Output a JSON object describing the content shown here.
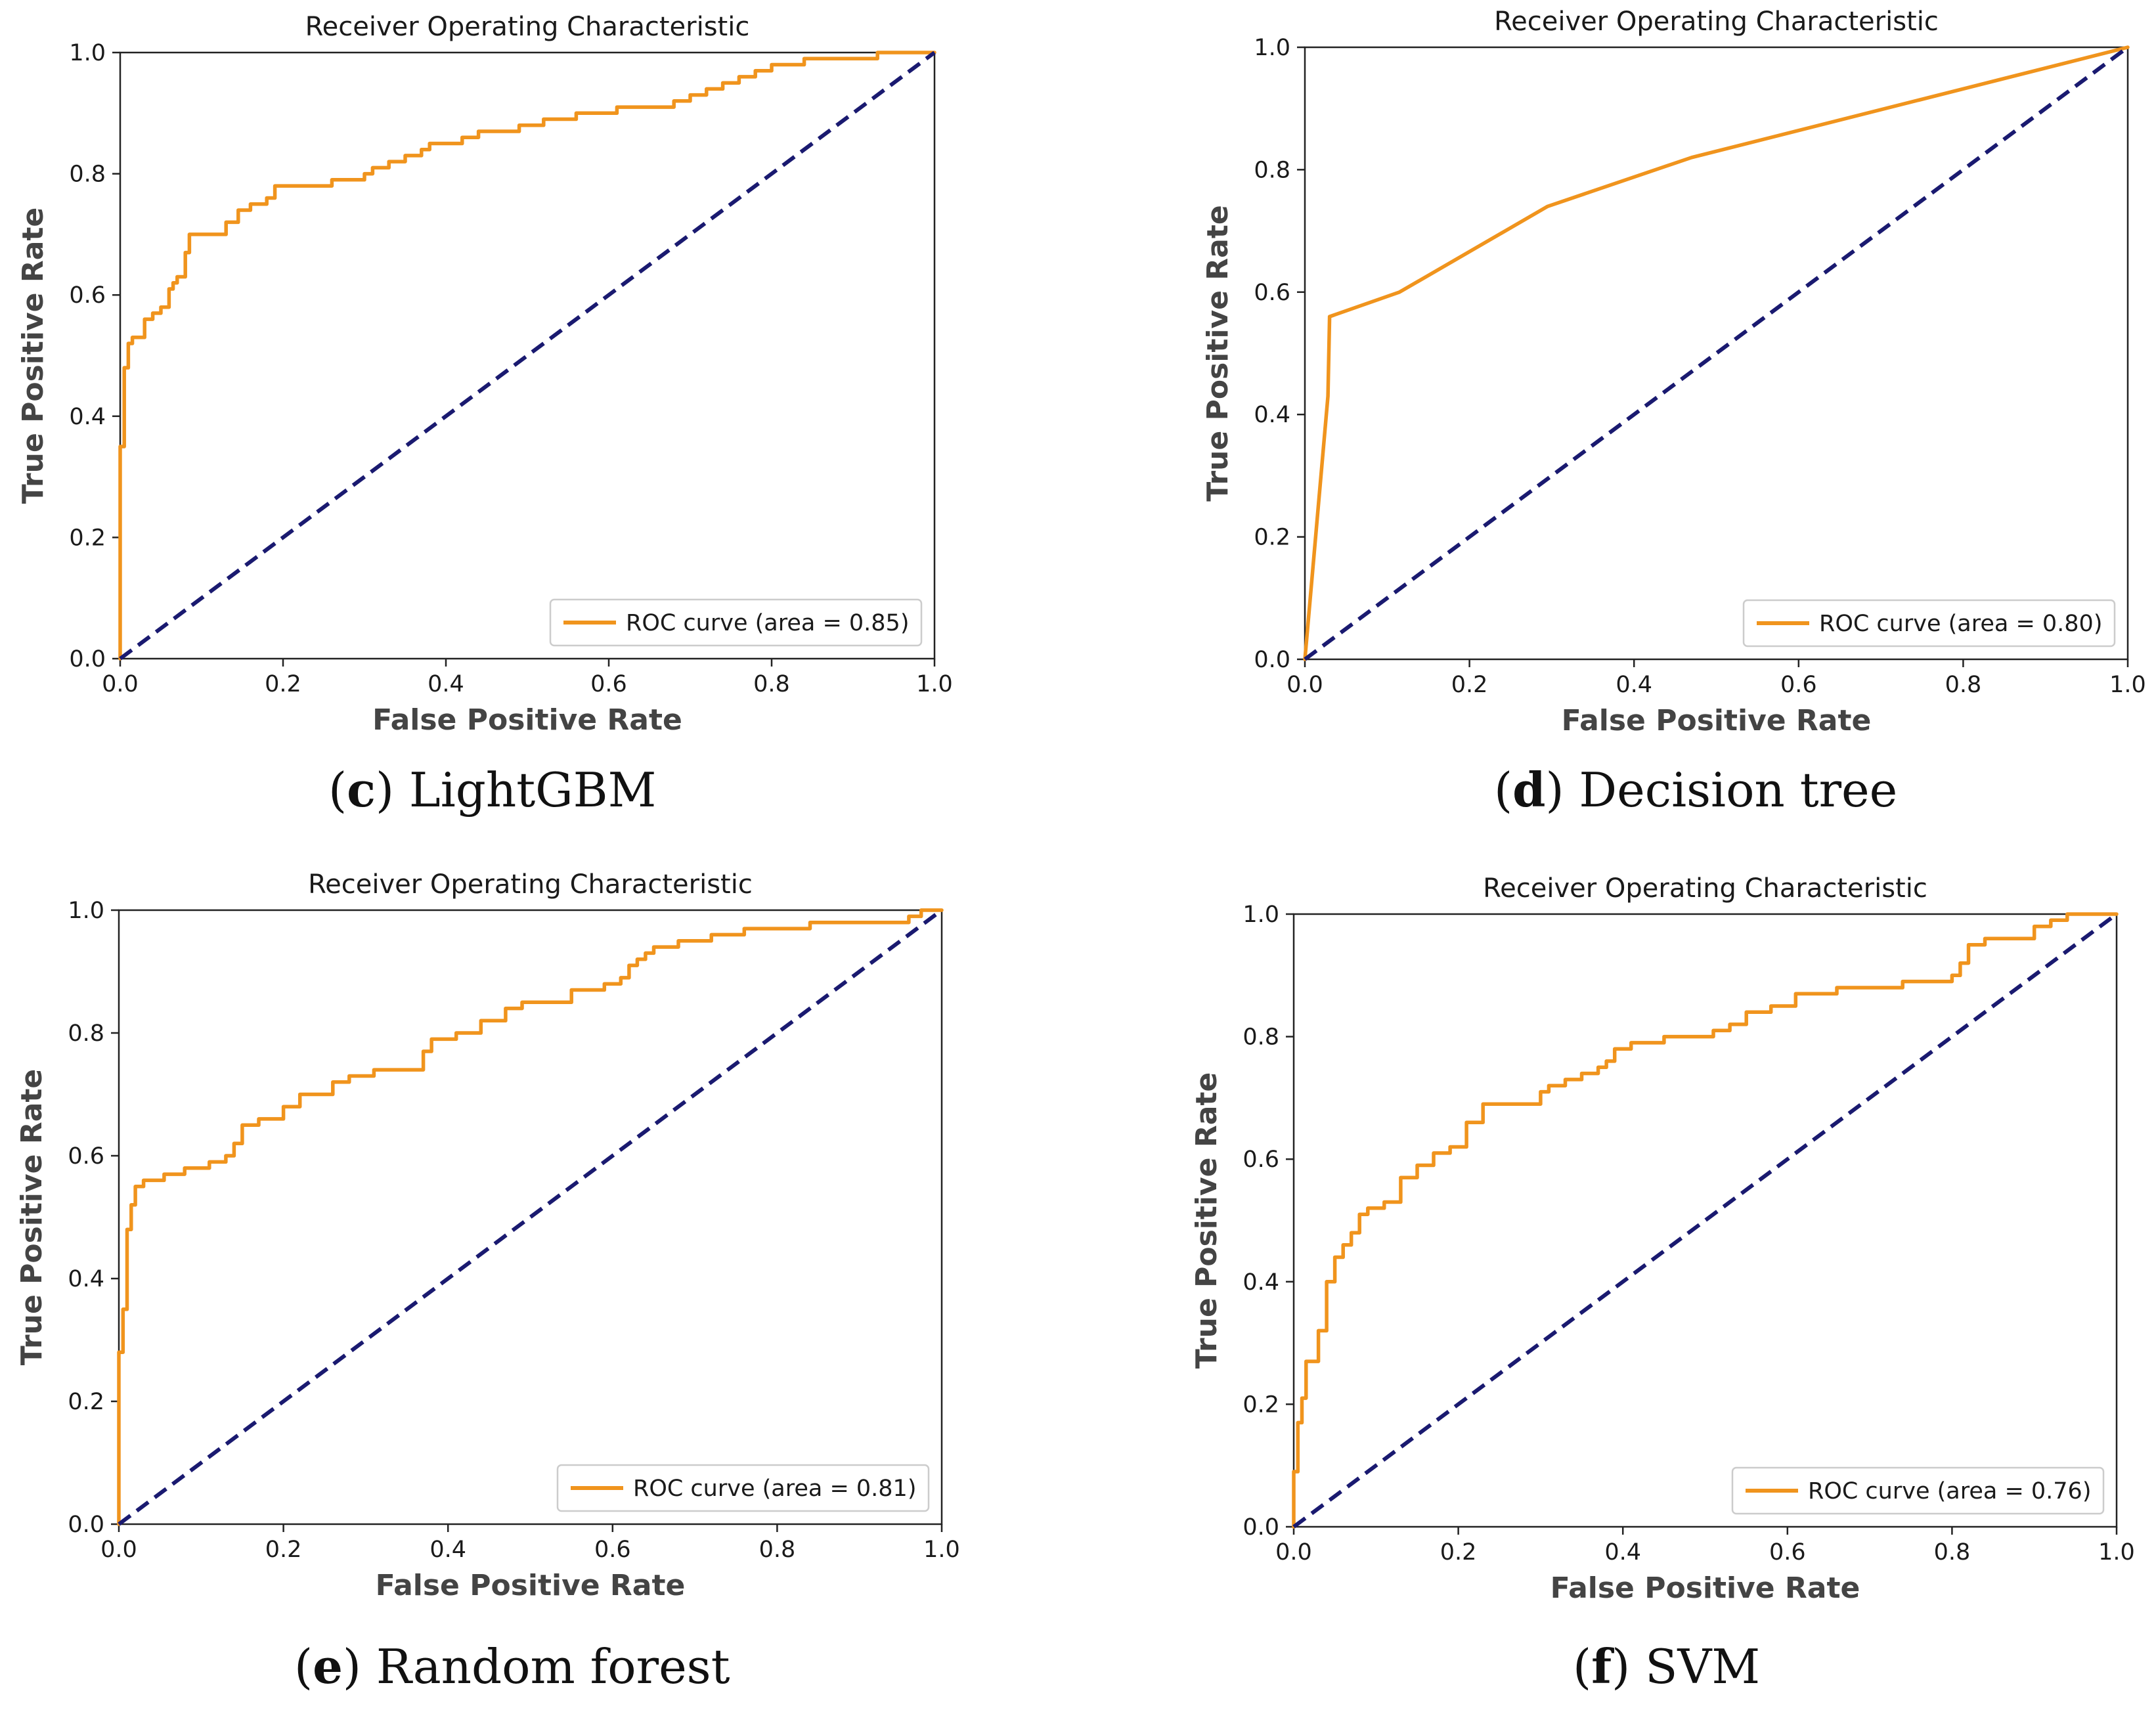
{
  "chart_data": [
    {
      "type": "line",
      "title": "Receiver Operating Characteristic",
      "xlabel": "False Positive Rate",
      "ylabel": "True Positive Rate",
      "xlim": [
        0,
        1
      ],
      "ylim": [
        0,
        1
      ],
      "xticks": [
        "0.0",
        "0.2",
        "0.4",
        "0.6",
        "0.8",
        "1.0"
      ],
      "yticks": [
        "0.0",
        "0.2",
        "0.4",
        "0.6",
        "0.8",
        "1.0"
      ],
      "caption_letter": "c",
      "caption_text": "LightGBM",
      "legend": "ROC curve (area = 0.85)",
      "legend_position": "lower-right",
      "series": [
        {
          "name": "ROC curve (area = 0.85)",
          "color": "#f0941d",
          "x": [
            0,
            0,
            0.005,
            0.005,
            0.01,
            0.01,
            0.015,
            0.015,
            0.02,
            0.03,
            0.03,
            0.04,
            0.04,
            0.045,
            0.05,
            0.05,
            0.06,
            0.06,
            0.065,
            0.065,
            0.07,
            0.07,
            0.08,
            0.08,
            0.085,
            0.085,
            0.13,
            0.13,
            0.145,
            0.145,
            0.16,
            0.16,
            0.18,
            0.18,
            0.19,
            0.19,
            0.26,
            0.26,
            0.3,
            0.3,
            0.31,
            0.31,
            0.33,
            0.33,
            0.35,
            0.35,
            0.37,
            0.37,
            0.38,
            0.38,
            0.4,
            0.4,
            0.42,
            0.42,
            0.44,
            0.44,
            0.49,
            0.49,
            0.52,
            0.52,
            0.56,
            0.56,
            0.61,
            0.61,
            0.68,
            0.68,
            0.7,
            0.7,
            0.72,
            0.72,
            0.74,
            0.74,
            0.76,
            0.76,
            0.78,
            0.78,
            0.8,
            0.8,
            0.84,
            0.84,
            0.93,
            0.93,
            1.0
          ],
          "y": [
            0,
            0.35,
            0.35,
            0.48,
            0.48,
            0.52,
            0.52,
            0.53,
            0.53,
            0.53,
            0.56,
            0.56,
            0.57,
            0.57,
            0.57,
            0.58,
            0.58,
            0.61,
            0.61,
            0.62,
            0.62,
            0.63,
            0.63,
            0.67,
            0.67,
            0.7,
            0.7,
            0.72,
            0.72,
            0.74,
            0.74,
            0.75,
            0.75,
            0.76,
            0.76,
            0.78,
            0.78,
            0.79,
            0.79,
            0.8,
            0.8,
            0.81,
            0.81,
            0.82,
            0.82,
            0.83,
            0.83,
            0.84,
            0.84,
            0.85,
            0.85,
            0.85,
            0.85,
            0.86,
            0.86,
            0.87,
            0.87,
            0.88,
            0.88,
            0.89,
            0.89,
            0.9,
            0.9,
            0.91,
            0.91,
            0.92,
            0.92,
            0.93,
            0.93,
            0.94,
            0.94,
            0.95,
            0.95,
            0.96,
            0.96,
            0.97,
            0.97,
            0.98,
            0.98,
            0.99,
            0.99,
            1.0,
            1.0
          ]
        },
        {
          "name": "chance",
          "color": "#1a1a70",
          "dashed": true,
          "x": [
            0,
            1
          ],
          "y": [
            0,
            1
          ]
        }
      ]
    },
    {
      "type": "line",
      "title": "Receiver Operating Characteristic",
      "xlabel": "False Positive Rate",
      "ylabel": "True Positive Rate",
      "xlim": [
        0,
        1
      ],
      "ylim": [
        0,
        1
      ],
      "xticks": [
        "0.0",
        "0.2",
        "0.4",
        "0.6",
        "0.8",
        "1.0"
      ],
      "yticks": [
        "0.0",
        "0.2",
        "0.4",
        "0.6",
        "0.8",
        "1.0"
      ],
      "caption_letter": "d",
      "caption_text": "Decision tree",
      "legend": "ROC curve (area = 0.80)",
      "legend_position": "lower-right",
      "series": [
        {
          "name": "ROC curve (area = 0.80)",
          "color": "#f0941d",
          "x": [
            0,
            0.028,
            0.03,
            0.115,
            0.295,
            0.47,
            1.0
          ],
          "y": [
            0,
            0.43,
            0.56,
            0.6,
            0.74,
            0.82,
            1.0
          ]
        },
        {
          "name": "chance",
          "color": "#1a1a70",
          "dashed": true,
          "x": [
            0,
            1
          ],
          "y": [
            0,
            1
          ]
        }
      ]
    },
    {
      "type": "line",
      "title": "Receiver Operating Characteristic",
      "xlabel": "False Positive Rate",
      "ylabel": "True Positive Rate",
      "xlim": [
        0,
        1
      ],
      "ylim": [
        0,
        1
      ],
      "xticks": [
        "0.0",
        "0.2",
        "0.4",
        "0.6",
        "0.8",
        "1.0"
      ],
      "yticks": [
        "0.0",
        "0.2",
        "0.4",
        "0.6",
        "0.8",
        "1.0"
      ],
      "caption_letter": "e",
      "caption_text": "Random forest",
      "legend": "ROC curve (area = 0.81)",
      "legend_position": "lower-right",
      "series": [
        {
          "name": "ROC curve (area = 0.81)",
          "color": "#f0941d",
          "x": [
            0,
            0,
            0.005,
            0.005,
            0.01,
            0.01,
            0.015,
            0.015,
            0.02,
            0.02,
            0.03,
            0.03,
            0.055,
            0.055,
            0.08,
            0.08,
            0.11,
            0.11,
            0.13,
            0.13,
            0.14,
            0.14,
            0.15,
            0.15,
            0.17,
            0.17,
            0.2,
            0.2,
            0.22,
            0.22,
            0.26,
            0.26,
            0.28,
            0.28,
            0.31,
            0.31,
            0.37,
            0.37,
            0.38,
            0.38,
            0.41,
            0.41,
            0.44,
            0.44,
            0.47,
            0.47,
            0.49,
            0.49,
            0.5,
            0.5,
            0.55,
            0.55,
            0.59,
            0.59,
            0.61,
            0.61,
            0.62,
            0.62,
            0.63,
            0.63,
            0.64,
            0.64,
            0.65,
            0.65,
            0.68,
            0.68,
            0.72,
            0.72,
            0.76,
            0.76,
            0.84,
            0.84,
            0.96,
            0.96,
            0.975,
            0.975,
            1.0
          ],
          "y": [
            0,
            0.28,
            0.28,
            0.35,
            0.35,
            0.48,
            0.48,
            0.52,
            0.52,
            0.55,
            0.55,
            0.56,
            0.56,
            0.57,
            0.57,
            0.58,
            0.58,
            0.59,
            0.59,
            0.6,
            0.6,
            0.62,
            0.62,
            0.65,
            0.65,
            0.66,
            0.66,
            0.68,
            0.68,
            0.7,
            0.7,
            0.72,
            0.72,
            0.73,
            0.73,
            0.74,
            0.74,
            0.77,
            0.77,
            0.79,
            0.79,
            0.8,
            0.8,
            0.82,
            0.82,
            0.84,
            0.84,
            0.85,
            0.85,
            0.85,
            0.85,
            0.87,
            0.87,
            0.88,
            0.88,
            0.89,
            0.89,
            0.91,
            0.91,
            0.92,
            0.92,
            0.93,
            0.93,
            0.94,
            0.94,
            0.95,
            0.95,
            0.96,
            0.96,
            0.97,
            0.97,
            0.98,
            0.98,
            0.99,
            0.99,
            1.0,
            1.0
          ]
        },
        {
          "name": "chance",
          "color": "#1a1a70",
          "dashed": true,
          "x": [
            0,
            1
          ],
          "y": [
            0,
            1
          ]
        }
      ]
    },
    {
      "type": "line",
      "title": "Receiver Operating Characteristic",
      "xlabel": "False Positive Rate",
      "ylabel": "True Positive Rate",
      "xlim": [
        0,
        1
      ],
      "ylim": [
        0,
        1
      ],
      "xticks": [
        "0.0",
        "0.2",
        "0.4",
        "0.6",
        "0.8",
        "1.0"
      ],
      "yticks": [
        "0.0",
        "0.2",
        "0.4",
        "0.6",
        "0.8",
        "1.0"
      ],
      "caption_letter": "f",
      "caption_text": "SVM",
      "legend": "ROC curve (area = 0.76)",
      "legend_position": "lower-right",
      "series": [
        {
          "name": "ROC curve (area = 0.76)",
          "color": "#f0941d",
          "x": [
            0,
            0,
            0.005,
            0.005,
            0.01,
            0.01,
            0.015,
            0.015,
            0.03,
            0.03,
            0.04,
            0.04,
            0.05,
            0.05,
            0.06,
            0.06,
            0.07,
            0.07,
            0.08,
            0.08,
            0.09,
            0.09,
            0.11,
            0.11,
            0.13,
            0.13,
            0.15,
            0.15,
            0.17,
            0.17,
            0.19,
            0.19,
            0.21,
            0.21,
            0.23,
            0.23,
            0.3,
            0.3,
            0.31,
            0.31,
            0.33,
            0.33,
            0.35,
            0.35,
            0.37,
            0.37,
            0.38,
            0.38,
            0.39,
            0.39,
            0.41,
            0.41,
            0.45,
            0.45,
            0.51,
            0.51,
            0.53,
            0.53,
            0.55,
            0.55,
            0.58,
            0.58,
            0.61,
            0.61,
            0.66,
            0.66,
            0.74,
            0.74,
            0.8,
            0.8,
            0.81,
            0.81,
            0.82,
            0.82,
            0.84,
            0.84,
            0.9,
            0.9,
            0.92,
            0.92,
            0.94,
            0.94,
            1.0
          ],
          "y": [
            0,
            0.09,
            0.09,
            0.17,
            0.17,
            0.21,
            0.21,
            0.27,
            0.27,
            0.32,
            0.32,
            0.4,
            0.4,
            0.44,
            0.44,
            0.46,
            0.46,
            0.48,
            0.48,
            0.51,
            0.51,
            0.52,
            0.52,
            0.53,
            0.53,
            0.57,
            0.57,
            0.59,
            0.59,
            0.61,
            0.61,
            0.62,
            0.62,
            0.66,
            0.66,
            0.69,
            0.69,
            0.71,
            0.71,
            0.72,
            0.72,
            0.73,
            0.73,
            0.74,
            0.74,
            0.75,
            0.75,
            0.76,
            0.76,
            0.78,
            0.78,
            0.79,
            0.79,
            0.8,
            0.8,
            0.81,
            0.81,
            0.82,
            0.82,
            0.84,
            0.84,
            0.85,
            0.85,
            0.87,
            0.87,
            0.88,
            0.88,
            0.89,
            0.89,
            0.9,
            0.9,
            0.92,
            0.92,
            0.95,
            0.95,
            0.96,
            0.96,
            0.98,
            0.98,
            0.99,
            0.99,
            1.0,
            1.0
          ]
        },
        {
          "name": "chance",
          "color": "#1a1a70",
          "dashed": true,
          "x": [
            0,
            1
          ],
          "y": [
            0,
            1
          ]
        }
      ]
    }
  ]
}
